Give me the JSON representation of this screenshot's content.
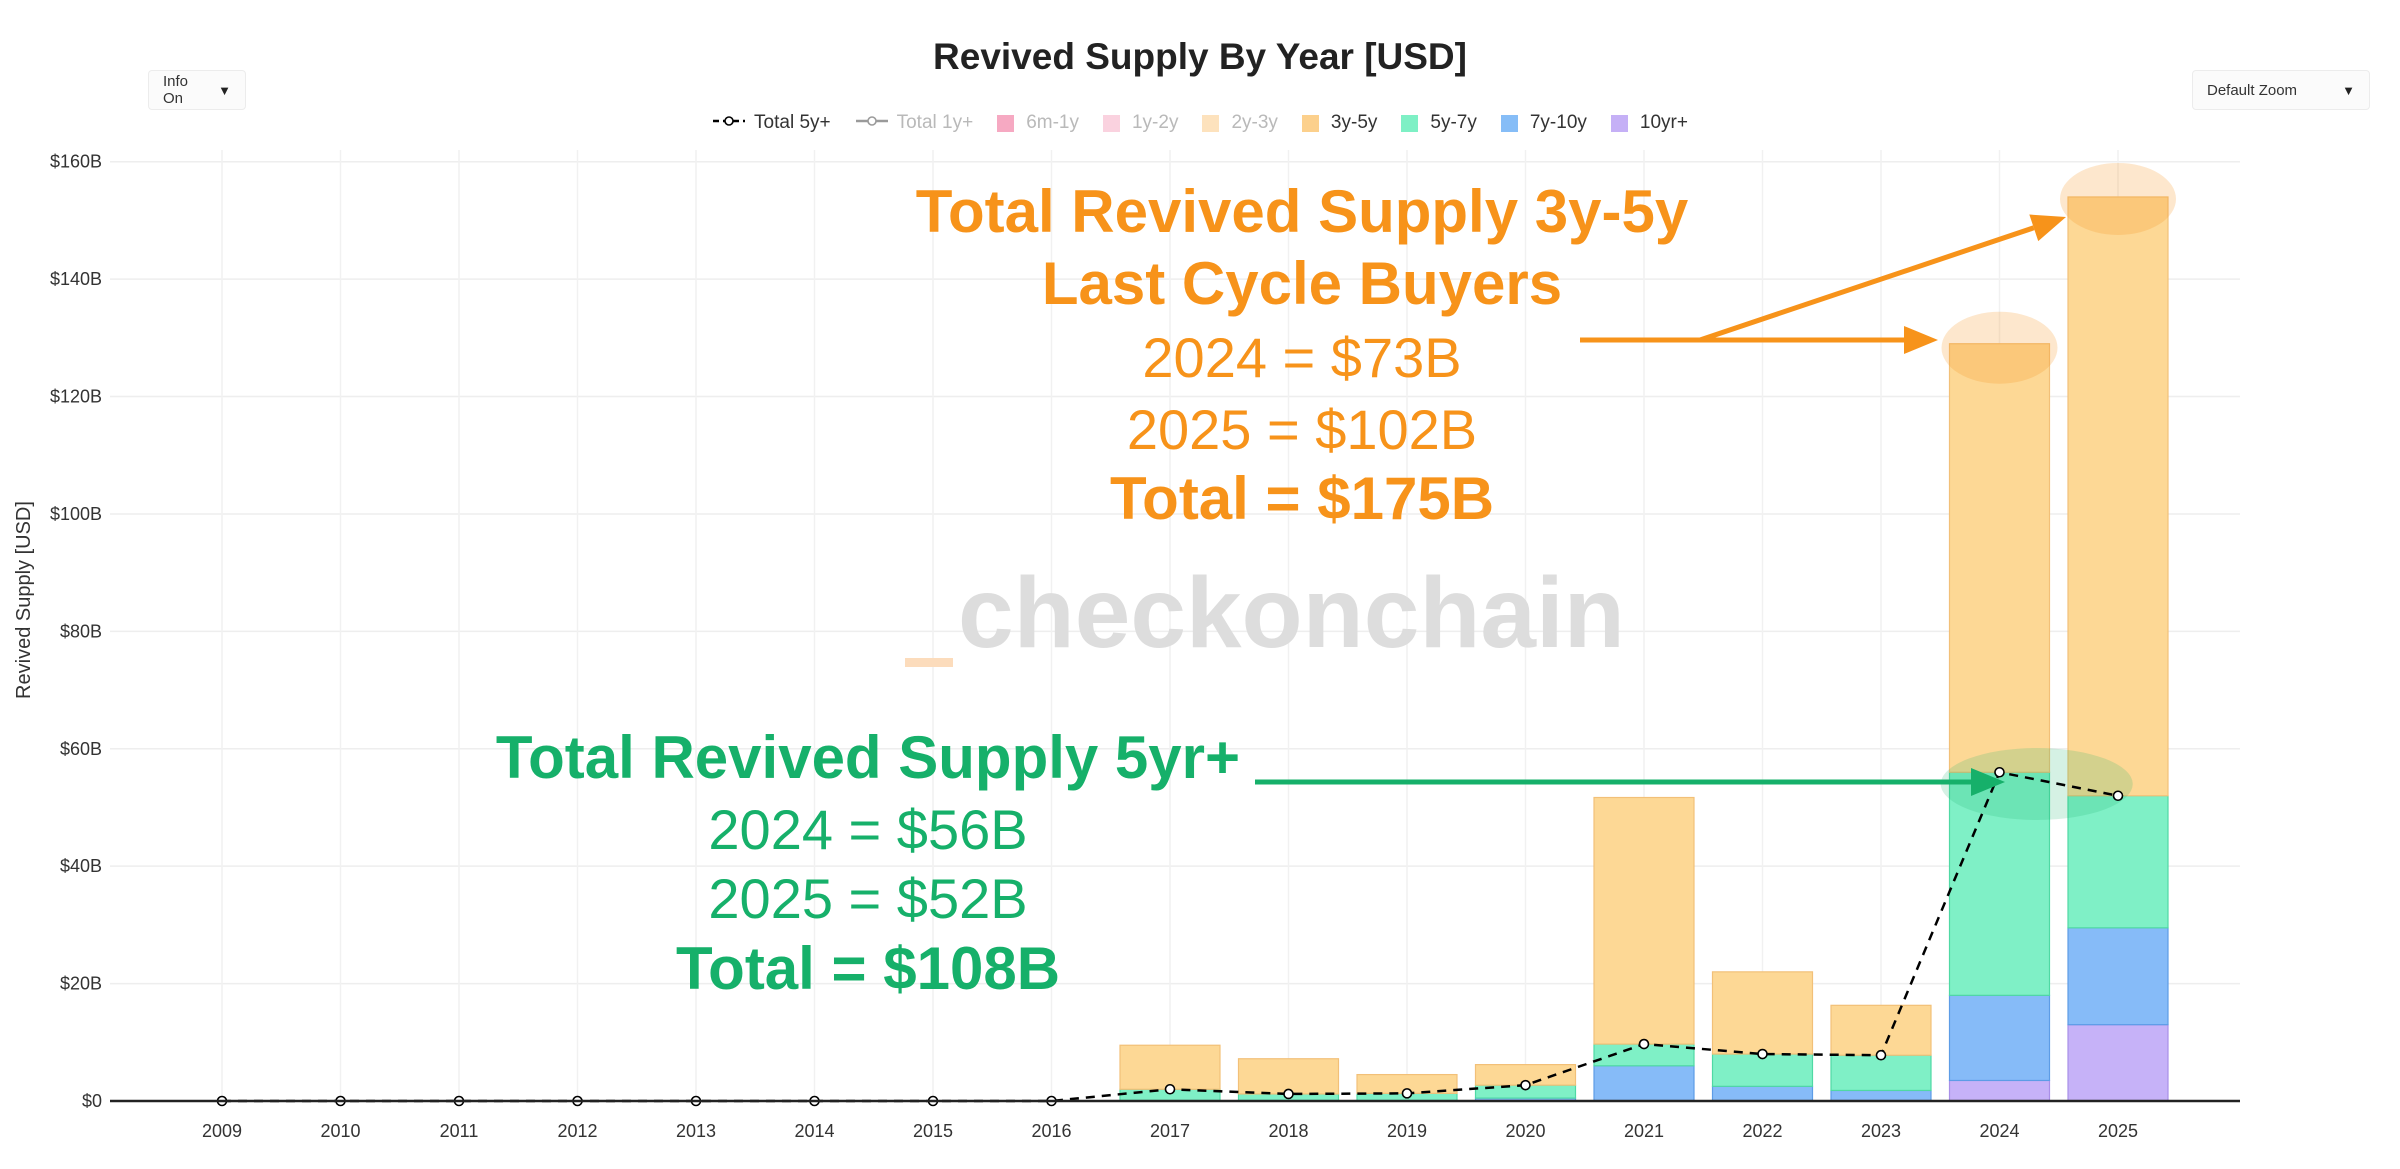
{
  "controls": {
    "info_label": "Info On",
    "zoom_label": "Default Zoom"
  },
  "legend": [
    {
      "name": "Total 5y+",
      "kind": "line-dash",
      "color": "#000000",
      "active": true
    },
    {
      "name": "Total 1y+",
      "kind": "line",
      "color": "#9a9a9a",
      "active": false
    },
    {
      "name": "6m-1y",
      "kind": "box",
      "color": "#f6a9c2",
      "active": false
    },
    {
      "name": "1y-2y",
      "kind": "box",
      "color": "#fad2df",
      "active": false
    },
    {
      "name": "2y-3y",
      "kind": "box",
      "color": "#fde2bd",
      "active": false
    },
    {
      "name": "3y-5y",
      "kind": "box",
      "color": "#fcd08c",
      "active": true
    },
    {
      "name": "5y-7y",
      "kind": "box",
      "color": "#7ef0c5",
      "active": true
    },
    {
      "name": "7y-10y",
      "kind": "box",
      "color": "#86bdf7",
      "active": true
    },
    {
      "name": "10yr+",
      "kind": "box",
      "color": "#c5b0f6",
      "active": true
    }
  ],
  "colors": {
    "3y-5y": "#fdd895",
    "5y-7y": "#7ff0c6",
    "7y-10y": "#86bbf8",
    "10yr+": "#c6b2f8",
    "annotation_orange": "#f7931a",
    "annotation_green": "#16b06a",
    "watermark": "#dddddd",
    "watermark_accent": "#fcdcbc"
  },
  "watermark": {
    "prefix": "_",
    "text": "checkonchain"
  },
  "annotations": {
    "orange": {
      "title1": "Total Revived Supply 3y-5y",
      "title2": "Last Cycle Buyers",
      "line1": "2024 = $73B",
      "line2": "2025 = $102B",
      "total": "Total = $175B"
    },
    "green": {
      "title": "Total Revived Supply 5yr+",
      "line1": "2024 = $56B",
      "line2": "2025 = $52B",
      "total": "Total = $108B"
    }
  },
  "chart_data": {
    "type": "bar",
    "stacked": true,
    "title": "Revived Supply By Year [USD]",
    "xlabel": "",
    "ylabel": "Revived Supply [USD]",
    "ylim": [
      0,
      162
    ],
    "y_unit": "B USD",
    "y_ticks": [
      0,
      20,
      40,
      60,
      80,
      100,
      120,
      140,
      160
    ],
    "y_tick_labels": [
      "$0",
      "$20B",
      "$40B",
      "$60B",
      "$80B",
      "$100B",
      "$120B",
      "$140B",
      "$160B"
    ],
    "categories": [
      "2009",
      "2010",
      "2011",
      "2012",
      "2013",
      "2014",
      "2015",
      "2016",
      "2017",
      "2018",
      "2019",
      "2020",
      "2021",
      "2022",
      "2023",
      "2024",
      "2025"
    ],
    "series": [
      {
        "name": "10yr+",
        "values": [
          0,
          0,
          0,
          0,
          0,
          0,
          0,
          0,
          0,
          0,
          0,
          0,
          0,
          0,
          0,
          3.5,
          13
        ]
      },
      {
        "name": "7y-10y",
        "values": [
          0,
          0,
          0,
          0,
          0,
          0,
          0,
          0,
          0,
          0,
          0,
          0.5,
          6,
          2.5,
          1.8,
          14.5,
          16.5
        ]
      },
      {
        "name": "5y-7y",
        "values": [
          0,
          0,
          0,
          0,
          0,
          0,
          0,
          0,
          2,
          1.2,
          1.3,
          2.2,
          3.7,
          5.5,
          6,
          38,
          22.5
        ]
      },
      {
        "name": "3y-5y",
        "values": [
          0,
          0,
          0,
          0,
          0,
          0,
          0,
          0,
          7.5,
          6,
          3.2,
          3.5,
          42,
          14,
          8.5,
          73,
          102
        ]
      },
      {
        "name": "Total 5y+",
        "type": "line",
        "values": [
          0,
          0,
          0,
          0,
          0,
          0,
          0,
          0,
          2,
          1.2,
          1.3,
          2.7,
          9.7,
          8,
          7.8,
          56,
          52
        ]
      }
    ]
  }
}
